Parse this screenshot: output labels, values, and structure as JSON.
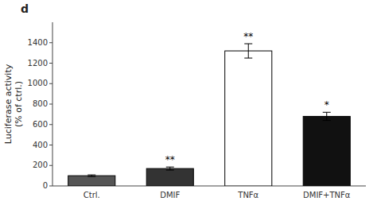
{
  "chart_data": {
    "type": "bar",
    "title": "d",
    "categories": [
      "Ctrl.",
      "DMIF",
      "TNFα",
      "DMIF+TNFα"
    ],
    "values": [
      100,
      170,
      1320,
      680
    ],
    "errors": [
      8,
      15,
      70,
      40
    ],
    "annotations": [
      null,
      "**",
      "**",
      "*"
    ],
    "colors": [
      "#555555",
      "#333333",
      "#ffffff",
      "#111111"
    ],
    "ylabel": "Luciferase activity\n(% of ctrl.)",
    "ylim": [
      0,
      1600
    ],
    "yticks": [
      0,
      200,
      400,
      600,
      800,
      1000,
      1200,
      1400
    ],
    "grid": false
  }
}
